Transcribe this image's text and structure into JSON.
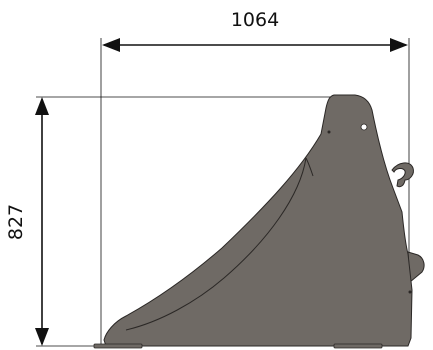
{
  "dimensions": {
    "width": {
      "value": "1064"
    },
    "height": {
      "value": "827"
    }
  },
  "colors": {
    "bucket_fill": "#6f6a65",
    "bucket_outline": "#2b2826",
    "dimension_line": "#111111",
    "background": "#ffffff"
  }
}
